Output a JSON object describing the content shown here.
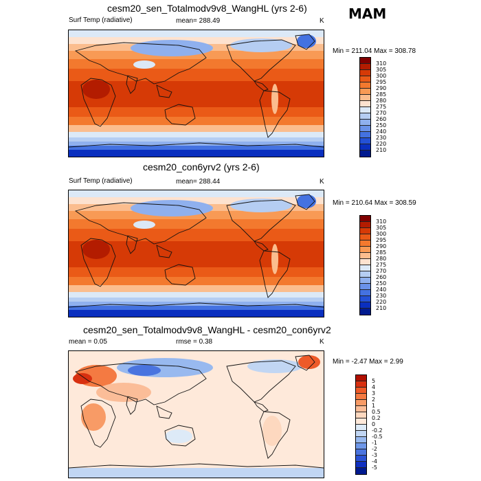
{
  "season": "MAM",
  "panels": [
    {
      "id": "sen",
      "title": "cesm20_sen_Totalmodv9v8_WangHL (yrs 2-6)",
      "left_label": "Surf Temp (radiative)",
      "center_label": "mean= 288.49",
      "units": "K",
      "minmax": "Min = 211.04 Max = 308.78",
      "colorbar": {
        "labels": [
          "310",
          "305",
          "300",
          "295",
          "290",
          "285",
          "280",
          "275",
          "270",
          "260",
          "250",
          "240",
          "230",
          "220",
          "210"
        ],
        "colors": [
          "#800000",
          "#b31c00",
          "#d63a06",
          "#ea5a17",
          "#f3792e",
          "#f89a55",
          "#fbbd8e",
          "#fde2cf",
          "#dce9f7",
          "#b5cdf2",
          "#8fb0ee",
          "#6a92e9",
          "#4472e1",
          "#2451d6",
          "#0a2fbf",
          "#001a8f"
        ]
      }
    },
    {
      "id": "con",
      "title": "cesm20_con6yrv2 (yrs 2-6)",
      "left_label": "Surf Temp (radiative)",
      "center_label": "mean= 288.44",
      "units": "K",
      "minmax": "Min = 210.64 Max = 308.59",
      "colorbar": {
        "labels": [
          "310",
          "305",
          "300",
          "295",
          "290",
          "285",
          "280",
          "275",
          "270",
          "260",
          "250",
          "240",
          "230",
          "220",
          "210"
        ],
        "colors": [
          "#800000",
          "#b31c00",
          "#d63a06",
          "#ea5a17",
          "#f3792e",
          "#f89a55",
          "#fbbd8e",
          "#fde2cf",
          "#dce9f7",
          "#b5cdf2",
          "#8fb0ee",
          "#6a92e9",
          "#4472e1",
          "#2451d6",
          "#0a2fbf",
          "#001a8f"
        ]
      }
    },
    {
      "id": "diff",
      "title": "cesm20_sen_Totalmodv9v8_WangHL - cesm20_con6yrv2",
      "left_label": "mean =   0.05",
      "center_label": "rmse =   0.38",
      "units": "K",
      "minmax": "Min =  -2.47 Max =   2.99",
      "colorbar": {
        "labels": [
          "5",
          "4",
          "3",
          "2",
          "1",
          "0.5",
          "0.2",
          "0",
          "-0.2",
          "-0.5",
          "-1",
          "-2",
          "-3",
          "-4",
          "-5"
        ],
        "colors": [
          "#b01000",
          "#d83010",
          "#ee5a28",
          "#f47a42",
          "#f89b66",
          "#fbbd98",
          "#fdd8bf",
          "#fee9da",
          "#ddeaf7",
          "#c1d6f3",
          "#98b9ef",
          "#6e97e8",
          "#4a74df",
          "#2a52d4",
          "#1030c0",
          "#001a90"
        ]
      }
    }
  ]
}
